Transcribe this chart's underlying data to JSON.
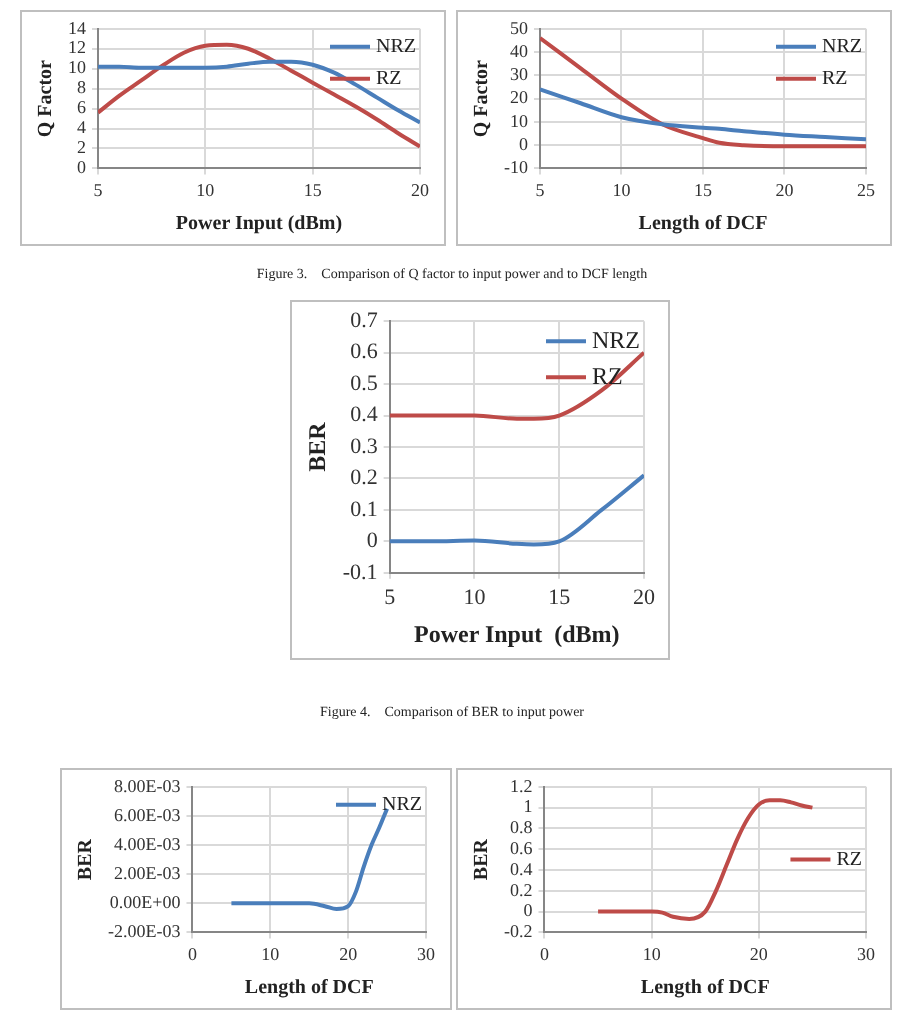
{
  "chart_data": [
    {
      "type": "line",
      "xlabel": "Power Input (dBm)",
      "ylabel": "Q Factor",
      "x": [
        5,
        6,
        7,
        8,
        9,
        10,
        11,
        12,
        13,
        14,
        15,
        16,
        17,
        18,
        19,
        20
      ],
      "xlim": [
        5,
        20
      ],
      "xticks": [
        5,
        10,
        15,
        20
      ],
      "ylim": [
        0,
        14
      ],
      "yticks": [
        0,
        2,
        4,
        6,
        8,
        10,
        12,
        14
      ],
      "grid": true,
      "legend": "top right",
      "marker": "none",
      "series": [
        {
          "name": "NRZ",
          "color": "#4a7ebb",
          "values": [
            10.2,
            10.2,
            10.1,
            10.1,
            10.1,
            10.1,
            10.2,
            10.5,
            10.7,
            10.7,
            10.4,
            9.6,
            8.4,
            7.1,
            5.8,
            4.6
          ]
        },
        {
          "name": "RZ",
          "color": "#be4b48",
          "values": [
            5.6,
            7.3,
            8.8,
            10.3,
            11.6,
            12.3,
            12.4,
            12.0,
            11.0,
            9.8,
            8.6,
            7.4,
            6.2,
            4.9,
            3.5,
            2.2
          ]
        }
      ]
    },
    {
      "type": "line",
      "xlabel": "Length of DCF",
      "ylabel": "Q Factor",
      "x": [
        5,
        7.5,
        10,
        12.5,
        15,
        16,
        17.5,
        20,
        22.5,
        25
      ],
      "xlim": [
        5,
        25
      ],
      "xticks": [
        5,
        10,
        15,
        20,
        25
      ],
      "ylim": [
        -10,
        50
      ],
      "yticks": [
        -10,
        0,
        10,
        20,
        30,
        40,
        50
      ],
      "grid": true,
      "legend": "top right",
      "marker": "none",
      "annotations": [
        "Figure 3.    Comparison of Q factor to input power and to DCF length"
      ],
      "series": [
        {
          "name": "NRZ",
          "color": "#4a7ebb",
          "values": [
            24,
            18,
            12,
            9,
            7.5,
            7,
            6,
            4.5,
            3.5,
            2.5
          ]
        },
        {
          "name": "RZ",
          "color": "#be4b48",
          "values": [
            46,
            33,
            20,
            9,
            3,
            1,
            0,
            -0.5,
            -0.5,
            -0.5
          ]
        }
      ]
    },
    {
      "type": "line",
      "xlabel": "Power Input  (dBm)",
      "ylabel": "BER",
      "x": [
        5,
        7.5,
        10,
        12.5,
        13.5,
        15,
        17.5,
        20
      ],
      "xlim": [
        5,
        20
      ],
      "xticks": [
        5,
        10,
        15,
        20
      ],
      "ylim": [
        -0.1,
        0.7
      ],
      "yticks": [
        -0.1,
        0,
        0.1,
        0.2,
        0.3,
        0.4,
        0.5,
        0.6,
        0.7
      ],
      "grid": true,
      "legend": "top right",
      "marker": "none",
      "annotations": [
        "Figure 4.    Comparison of BER to input power"
      ],
      "series": [
        {
          "name": "NRZ",
          "color": "#4a7ebb",
          "values": [
            0,
            0,
            0.003,
            -0.008,
            -0.01,
            0,
            0.1,
            0.21
          ]
        },
        {
          "name": "RZ",
          "color": "#be4b48",
          "values": [
            0.4,
            0.4,
            0.4,
            0.39,
            0.39,
            0.4,
            0.48,
            0.6
          ]
        }
      ]
    },
    {
      "type": "line",
      "xlabel": "Length of DCF",
      "ylabel": "BER",
      "x": [
        5,
        10,
        15,
        17,
        18.5,
        20,
        21,
        22,
        23,
        24,
        25
      ],
      "xlim": [
        0,
        30
      ],
      "xticks": [
        0,
        10,
        20,
        30
      ],
      "ylim": [
        -0.002,
        0.008
      ],
      "yticks": [
        {
          "value": -0.002,
          "label": "-2.00E-03"
        },
        {
          "value": 0,
          "label": "0.00E+00"
        },
        {
          "value": 0.002,
          "label": "2.00E-03"
        },
        {
          "value": 0.004,
          "label": "4.00E-03"
        },
        {
          "value": 0.006,
          "label": "6.00E-03"
        },
        {
          "value": 0.008,
          "label": "8.00E-03"
        }
      ],
      "grid": true,
      "legend": "top right",
      "marker": "none",
      "series": [
        {
          "name": "NRZ",
          "color": "#4a7ebb",
          "values": [
            0,
            0,
            0,
            -0.0002,
            -0.0004,
            -0.0002,
            0.0008,
            0.0025,
            0.004,
            0.0052,
            0.0065
          ]
        }
      ]
    },
    {
      "type": "line",
      "xlabel": "Length of DCF",
      "ylabel": "BER",
      "x": [
        5,
        10,
        11,
        12,
        13.5,
        15,
        16,
        17,
        18,
        19,
        20,
        21,
        22,
        23,
        24,
        25
      ],
      "xlim": [
        0,
        30
      ],
      "xticks": [
        0,
        10,
        20,
        30
      ],
      "ylim": [
        -0.2,
        1.2
      ],
      "yticks": [
        -0.2,
        0,
        0.2,
        0.4,
        0.6,
        0.8,
        1,
        1.2
      ],
      "grid": true,
      "legend": "right",
      "marker": "none",
      "series": [
        {
          "name": "RZ",
          "color": "#be4b48",
          "values": [
            0,
            0,
            -0.01,
            -0.05,
            -0.07,
            0,
            0.2,
            0.45,
            0.7,
            0.9,
            1.03,
            1.07,
            1.07,
            1.05,
            1.02,
            1
          ]
        }
      ]
    }
  ]
}
